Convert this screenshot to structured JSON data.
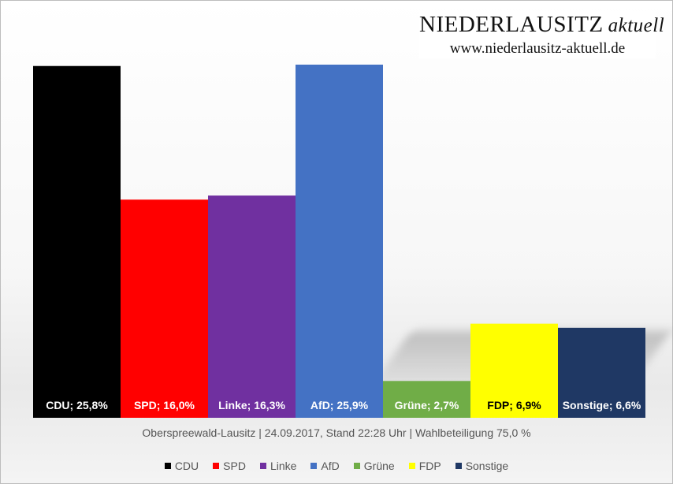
{
  "brand": {
    "name": "NIEDERLAUSITZ",
    "name_suffix": "aktuell",
    "url": "www.niederlausitz-aktuell.de"
  },
  "caption": "Oberspreewald-Lausitz | 24.09.2017, Stand 22:28 Uhr | Wahlbeteiligung 75,0 %",
  "chart_data": {
    "type": "bar",
    "categories": [
      "CDU",
      "SPD",
      "Linke",
      "AfD",
      "Grüne",
      "FDP",
      "Sonstige"
    ],
    "values": [
      25.8,
      16.0,
      16.3,
      25.9,
      2.7,
      6.9,
      6.6
    ],
    "data_labels": [
      "CDU; 25,8%",
      "SPD; 16,0%",
      "Linke; 16,3%",
      "AfD; 25,9%",
      "Grüne; 2,7%",
      "FDP; 6,9%",
      "Sonstige; 6,6%"
    ],
    "colors": [
      "#000000",
      "#ff0000",
      "#7030a0",
      "#4472c4",
      "#70ad47",
      "#ffff00",
      "#1f3864"
    ],
    "label_colors": [
      "#ffffff",
      "#ffffff",
      "#ffffff",
      "#ffffff",
      "#ffffff",
      "#000000",
      "#ffffff"
    ],
    "ylim": [
      0,
      25.9
    ],
    "grid": false,
    "legend": "bottom"
  }
}
